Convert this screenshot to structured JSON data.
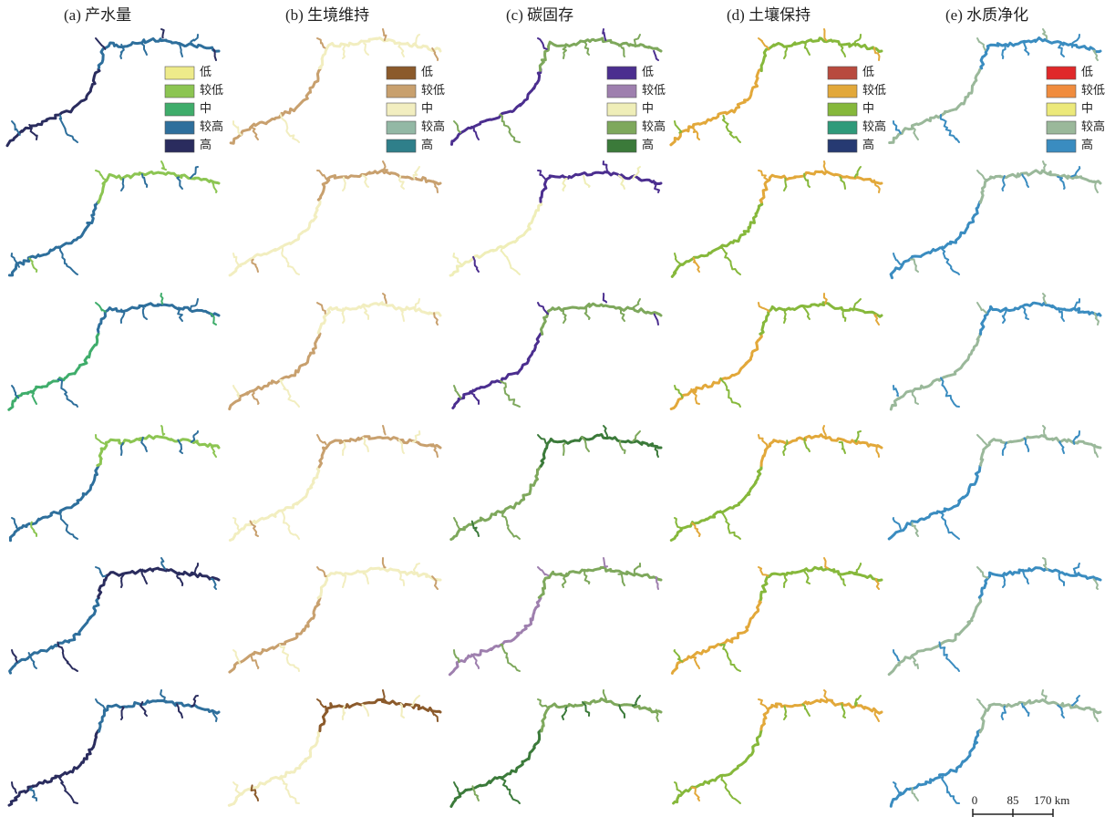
{
  "panels": [
    {
      "title": "(a) 产水量",
      "legend": [
        {
          "label": "低",
          "color": "#eeeb8a"
        },
        {
          "label": "较低",
          "color": "#8cc552"
        },
        {
          "label": "中",
          "color": "#3fad6b"
        },
        {
          "label": "较高",
          "color": "#2e6f9c"
        },
        {
          "label": "高",
          "color": "#2a2c5e"
        }
      ]
    },
    {
      "title": "(b) 生境维持",
      "legend": [
        {
          "label": "低",
          "color": "#8b5a2b"
        },
        {
          "label": "较低",
          "color": "#c8a06e"
        },
        {
          "label": "中",
          "color": "#f2eec0"
        },
        {
          "label": "较高",
          "color": "#93b8a5"
        },
        {
          "label": "高",
          "color": "#2f7f8a"
        }
      ]
    },
    {
      "title": "(c) 碳固存",
      "legend": [
        {
          "label": "低",
          "color": "#4b2e8f"
        },
        {
          "label": "较低",
          "color": "#9e7fae"
        },
        {
          "label": "中",
          "color": "#efeeb8"
        },
        {
          "label": "较高",
          "color": "#7ea85c"
        },
        {
          "label": "高",
          "color": "#3b7a3a"
        }
      ]
    },
    {
      "title": "(d) 土壤保持",
      "legend": [
        {
          "label": "低",
          "color": "#b84a3e"
        },
        {
          "label": "较低",
          "color": "#e2a83a"
        },
        {
          "label": "中",
          "color": "#86b83b"
        },
        {
          "label": "较高",
          "color": "#2f9a7a"
        },
        {
          "label": "高",
          "color": "#263a72"
        }
      ]
    },
    {
      "title": "(e) 水质净化",
      "legend": [
        {
          "label": "低",
          "color": "#e0282a"
        },
        {
          "label": "较低",
          "color": "#f08c3e"
        },
        {
          "label": "中",
          "color": "#ece97a"
        },
        {
          "label": "较高",
          "color": "#9ab89a"
        },
        {
          "label": "高",
          "color": "#3a8cc0"
        }
      ]
    }
  ],
  "scale_bar": {
    "labels": [
      "0",
      "85",
      "170 km"
    ]
  }
}
